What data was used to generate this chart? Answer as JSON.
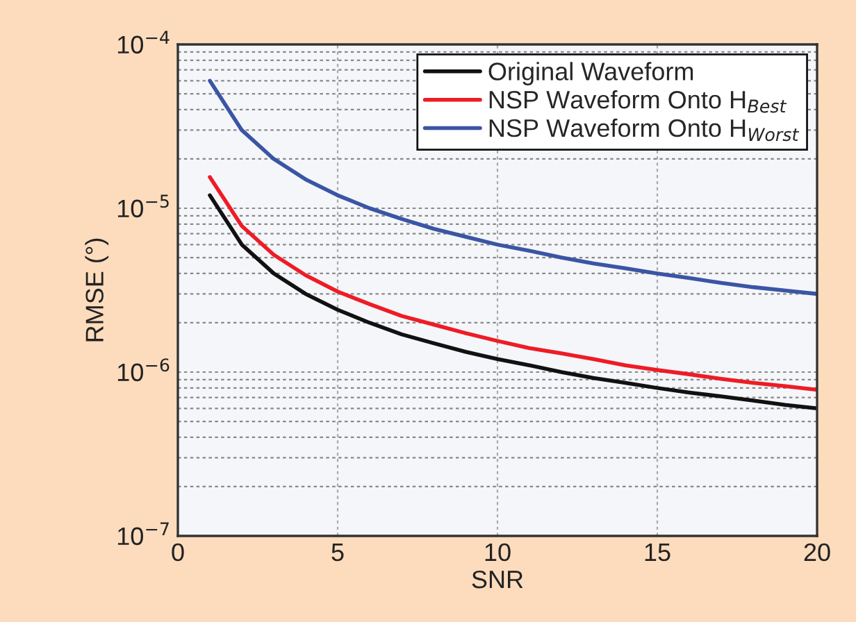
{
  "chart_data": {
    "type": "line",
    "xlabel": "SNR",
    "ylabel": "RMSE (°)",
    "log": "y",
    "grid": true,
    "legend": "top right",
    "marker": "none",
    "line_style": "solid",
    "x": [
      1,
      2,
      3,
      4,
      5,
      6,
      7,
      8,
      9,
      10,
      11,
      12,
      13,
      14,
      15,
      16,
      17,
      18,
      19,
      20
    ],
    "xlim": [
      0,
      20
    ],
    "xticks": [
      0,
      5,
      10,
      15,
      20
    ],
    "ylim": [
      1e-07,
      0.0001
    ],
    "yticks": [
      {
        "value": 1e-07,
        "label": "10$^{−7}$"
      },
      {
        "value": 1e-06,
        "label": "10$^{−6}$"
      },
      {
        "value": 1e-05,
        "label": "10$^{−5}$"
      },
      {
        "value": 0.0001,
        "label": "10$^{−4}$"
      }
    ],
    "series": [
      {
        "name": "Original Waveform",
        "color": "#111111",
        "values": [
          1.2e-05,
          6e-06,
          4e-06,
          3e-06,
          2.4e-06,
          2e-06,
          1.7e-06,
          1.5e-06,
          1.33e-06,
          1.2e-06,
          1.1e-06,
          1e-06,
          9.2e-07,
          8.6e-07,
          8e-07,
          7.5e-07,
          7.1e-07,
          6.7e-07,
          6.3e-07,
          6e-07
        ]
      },
      {
        "name": "NSP Waveform Onto H$_{Best}$",
        "color": "#ee1c25",
        "values": [
          1.55e-05,
          7.8e-06,
          5.2e-06,
          3.9e-06,
          3.1e-06,
          2.6e-06,
          2.2e-06,
          1.95e-06,
          1.73e-06,
          1.55e-06,
          1.4e-06,
          1.3e-06,
          1.2e-06,
          1.1e-06,
          1.03e-06,
          9.7e-07,
          9.1e-07,
          8.6e-07,
          8.2e-07,
          7.8e-07
        ]
      },
      {
        "name": "NSP Waveform Onto H$_{Worst}$",
        "color": "#3b55a5",
        "values": [
          6e-05,
          3e-05,
          2e-05,
          1.5e-05,
          1.2e-05,
          1e-05,
          8.6e-06,
          7.5e-06,
          6.7e-06,
          6e-06,
          5.5e-06,
          5e-06,
          4.6e-06,
          4.3e-06,
          4e-06,
          3.75e-06,
          3.5e-06,
          3.3e-06,
          3.15e-06,
          3e-06
        ]
      }
    ]
  }
}
